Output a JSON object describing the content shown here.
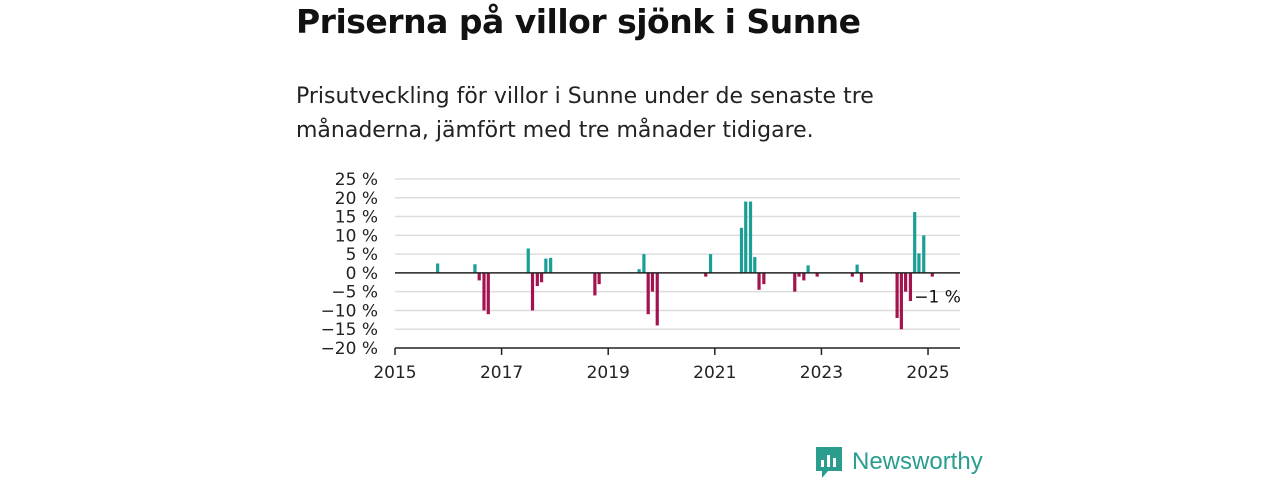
{
  "title": "Priserna på villor sjönk i Sunne",
  "subtitle": "Prisutveckling för villor i Sunne under de senaste tre månaderna, jämfört med tre månader tidigare.",
  "brand": {
    "name": "Newsworthy"
  },
  "colors": {
    "positive": "#1a9e96",
    "negative": "#a3144f",
    "grid": "#dddddd",
    "axis": "#222222",
    "brand": "#2a9d8f"
  },
  "chart_data": {
    "type": "bar",
    "title": "",
    "xlabel": "",
    "ylabel": "",
    "ylim": [
      -20,
      25
    ],
    "xlim": [
      2015,
      2025.6
    ],
    "yticks": [
      25,
      20,
      15,
      10,
      5,
      0,
      -5,
      -10,
      -15,
      -20
    ],
    "ytick_labels": [
      "25 %",
      "20 %",
      "15 %",
      "10 %",
      "5 %",
      "0 %",
      "−5 %",
      "−10 %",
      "−15 %",
      "−20 %"
    ],
    "xticks": [
      2015,
      2017,
      2019,
      2021,
      2023,
      2025
    ],
    "xtick_labels": [
      "2015",
      "2017",
      "2019",
      "2021",
      "2023",
      "2025"
    ],
    "grid": true,
    "series": [
      {
        "x": [
          2015.8,
          2016.5,
          2016.58,
          2016.67,
          2016.75,
          2017.5,
          2017.58,
          2017.67,
          2017.75,
          2017.83,
          2017.92,
          2018.75,
          2018.83,
          2019.58,
          2019.67,
          2019.75,
          2019.83,
          2019.92,
          2020.83,
          2020.92,
          2021.5,
          2021.58,
          2021.67,
          2021.75,
          2021.83,
          2021.92,
          2022.5,
          2022.58,
          2022.67,
          2022.75,
          2022.92,
          2023.58,
          2023.67,
          2023.75,
          2024.42,
          2024.5,
          2024.58,
          2024.67,
          2024.75,
          2024.83,
          2024.92,
          2025.08
        ],
        "values": [
          2.5,
          2.3,
          -2,
          -10,
          -11,
          6.5,
          -10,
          -3.5,
          -2.5,
          3.8,
          4,
          -6,
          -3,
          1,
          5,
          -11,
          -5,
          -14,
          -1,
          5,
          12,
          19,
          19,
          4.2,
          -4.5,
          -3,
          -5,
          -1,
          -2,
          2,
          -1,
          -1,
          2.2,
          -2.5,
          -12,
          -15,
          -5,
          -7.5,
          16.2,
          5.2,
          10,
          -1
        ]
      }
    ],
    "annotations": [
      {
        "x": 2025.08,
        "y": -1,
        "text": "−1 %"
      }
    ]
  }
}
